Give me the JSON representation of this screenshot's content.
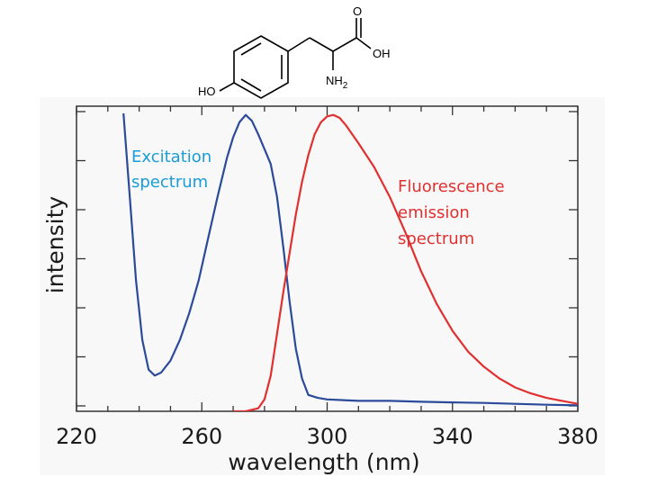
{
  "molecule": {
    "o_label": "O",
    "oh_label": "OH",
    "ho_label": "HO",
    "nh2_label": "NH",
    "nh2_sub": "2"
  },
  "chart_data": {
    "type": "line",
    "xlabel": "wavelength (nm)",
    "ylabel": "intensity",
    "xlim": [
      220,
      380
    ],
    "ylim": [
      0,
      1
    ],
    "x_ticks": [
      220,
      260,
      300,
      340,
      380
    ],
    "x_tick_labels": [
      "220",
      "260",
      "300",
      "340",
      "380"
    ],
    "y_tick_count": 7,
    "y_tick_labels": [],
    "grid": false,
    "series": [
      {
        "name": "Excitation spectrum",
        "label_lines": [
          "Excitation",
          "spectrum"
        ],
        "color": "#2b4a9a",
        "label_color": "#1a9cd8",
        "x": [
          235,
          237,
          239,
          241,
          243,
          245,
          247,
          250,
          253,
          256,
          259,
          262,
          265,
          268,
          270,
          272,
          274,
          276,
          278,
          280,
          282,
          284,
          286,
          288,
          290,
          292,
          294,
          297,
          300,
          310,
          320,
          330,
          340,
          350,
          360,
          370,
          380
        ],
        "y": [
          1.0,
          0.72,
          0.44,
          0.24,
          0.14,
          0.12,
          0.13,
          0.17,
          0.24,
          0.33,
          0.44,
          0.58,
          0.72,
          0.85,
          0.92,
          0.97,
          0.995,
          0.975,
          0.93,
          0.88,
          0.83,
          0.72,
          0.55,
          0.37,
          0.21,
          0.11,
          0.055,
          0.045,
          0.04,
          0.035,
          0.035,
          0.032,
          0.03,
          0.028,
          0.025,
          0.022,
          0.02
        ]
      },
      {
        "name": "Fluorescence emission spectrum",
        "label_lines": [
          "Fluorescence",
          "emission",
          "spectrum"
        ],
        "color": "#e03030",
        "label_color": "#e03030",
        "x": [
          270,
          274,
          278,
          280,
          282,
          284,
          286,
          288,
          290,
          292,
          294,
          296,
          298,
          300,
          302,
          304,
          306,
          308,
          310,
          315,
          320,
          325,
          330,
          335,
          340,
          345,
          350,
          355,
          360,
          365,
          370,
          375,
          380
        ],
        "y": [
          0.0,
          0.0,
          0.01,
          0.04,
          0.12,
          0.26,
          0.4,
          0.53,
          0.66,
          0.77,
          0.86,
          0.93,
          0.97,
          0.99,
          0.995,
          0.985,
          0.96,
          0.93,
          0.9,
          0.82,
          0.72,
          0.6,
          0.47,
          0.36,
          0.27,
          0.2,
          0.15,
          0.11,
          0.08,
          0.06,
          0.045,
          0.035,
          0.025
        ]
      }
    ]
  }
}
